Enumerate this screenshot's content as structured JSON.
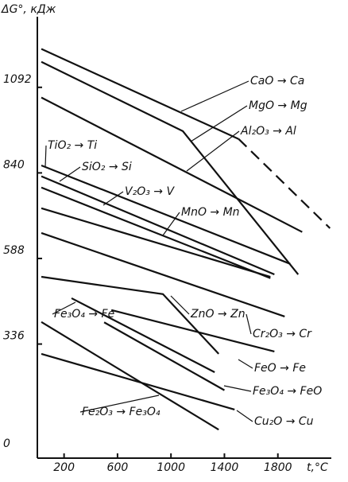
{
  "chart_data": {
    "type": "line",
    "y_label": "ΔG°, кДж",
    "x_label": "t,°C",
    "xlim": [
      0,
      2200
    ],
    "ylim": [
      0,
      1300
    ],
    "xticks": [
      200,
      600,
      1000,
      1400,
      1800
    ],
    "yticks": [
      0,
      336,
      588,
      840,
      1092
    ],
    "series": [
      {
        "name": "CaO → Ca",
        "color": "#111",
        "x": [
          30,
          1506
        ],
        "values": [
          1205,
          940
        ]
      },
      {
        "color": "#111",
        "style": "dashed",
        "x": [
          1506,
          2190
        ],
        "values": [
          940,
          677
        ]
      },
      {
        "name": "MgO → Mg",
        "color": "#111",
        "x": [
          30,
          1089,
          1952
        ],
        "values": [
          1167,
          963,
          541
        ]
      },
      {
        "name": "Al₂O₃ → Al",
        "color": "#111",
        "x": [
          30,
          1982
        ],
        "values": [
          1062,
          666
        ]
      },
      {
        "name": "TiO₂ → Ti",
        "color": "#111",
        "x": [
          30,
          1893
        ],
        "values": [
          862,
          572
        ]
      },
      {
        "name": "SiO₂ → Si",
        "color": "#111",
        "x": [
          30,
          1774
        ],
        "values": [
          830,
          541
        ]
      },
      {
        "name": "V₂O₃ → V",
        "color": "#111",
        "x": [
          30,
          1744
        ],
        "values": [
          797,
          530
        ]
      },
      {
        "name": "MnO → Mn",
        "color": "#111",
        "x": [
          30,
          1744
        ],
        "values": [
          736,
          534
        ]
      },
      {
        "name": "Cr₂O₃ → Cr",
        "color": "#111",
        "x": [
          30,
          1851
        ],
        "values": [
          663,
          417
        ]
      },
      {
        "name": "ZnO → Zn",
        "color": "#111",
        "x": [
          30,
          940,
          1357
        ],
        "values": [
          534,
          483,
          307
        ]
      },
      {
        "name": "Fe₃O₄ → Fe",
        "color": "#111",
        "x": [
          256,
          1327
        ],
        "values": [
          471,
          253
        ]
      },
      {
        "name": "FeO → Fe",
        "color": "#111",
        "x": [
          554,
          1774
        ],
        "values": [
          436,
          314
        ]
      },
      {
        "name": "Fe₃O₄ → FeO",
        "color": "#111",
        "x": [
          500,
          1400
        ],
        "values": [
          400,
          200
        ]
      },
      {
        "name": "Fe₂O₃ → Fe₃O₄",
        "color": "#111",
        "x": [
          30,
          1357
        ],
        "values": [
          401,
          84
        ]
      },
      {
        "name": "Cu₂O → Cu",
        "color": "#111",
        "x": [
          30,
          1476
        ],
        "values": [
          307,
          143
        ]
      }
    ]
  }
}
